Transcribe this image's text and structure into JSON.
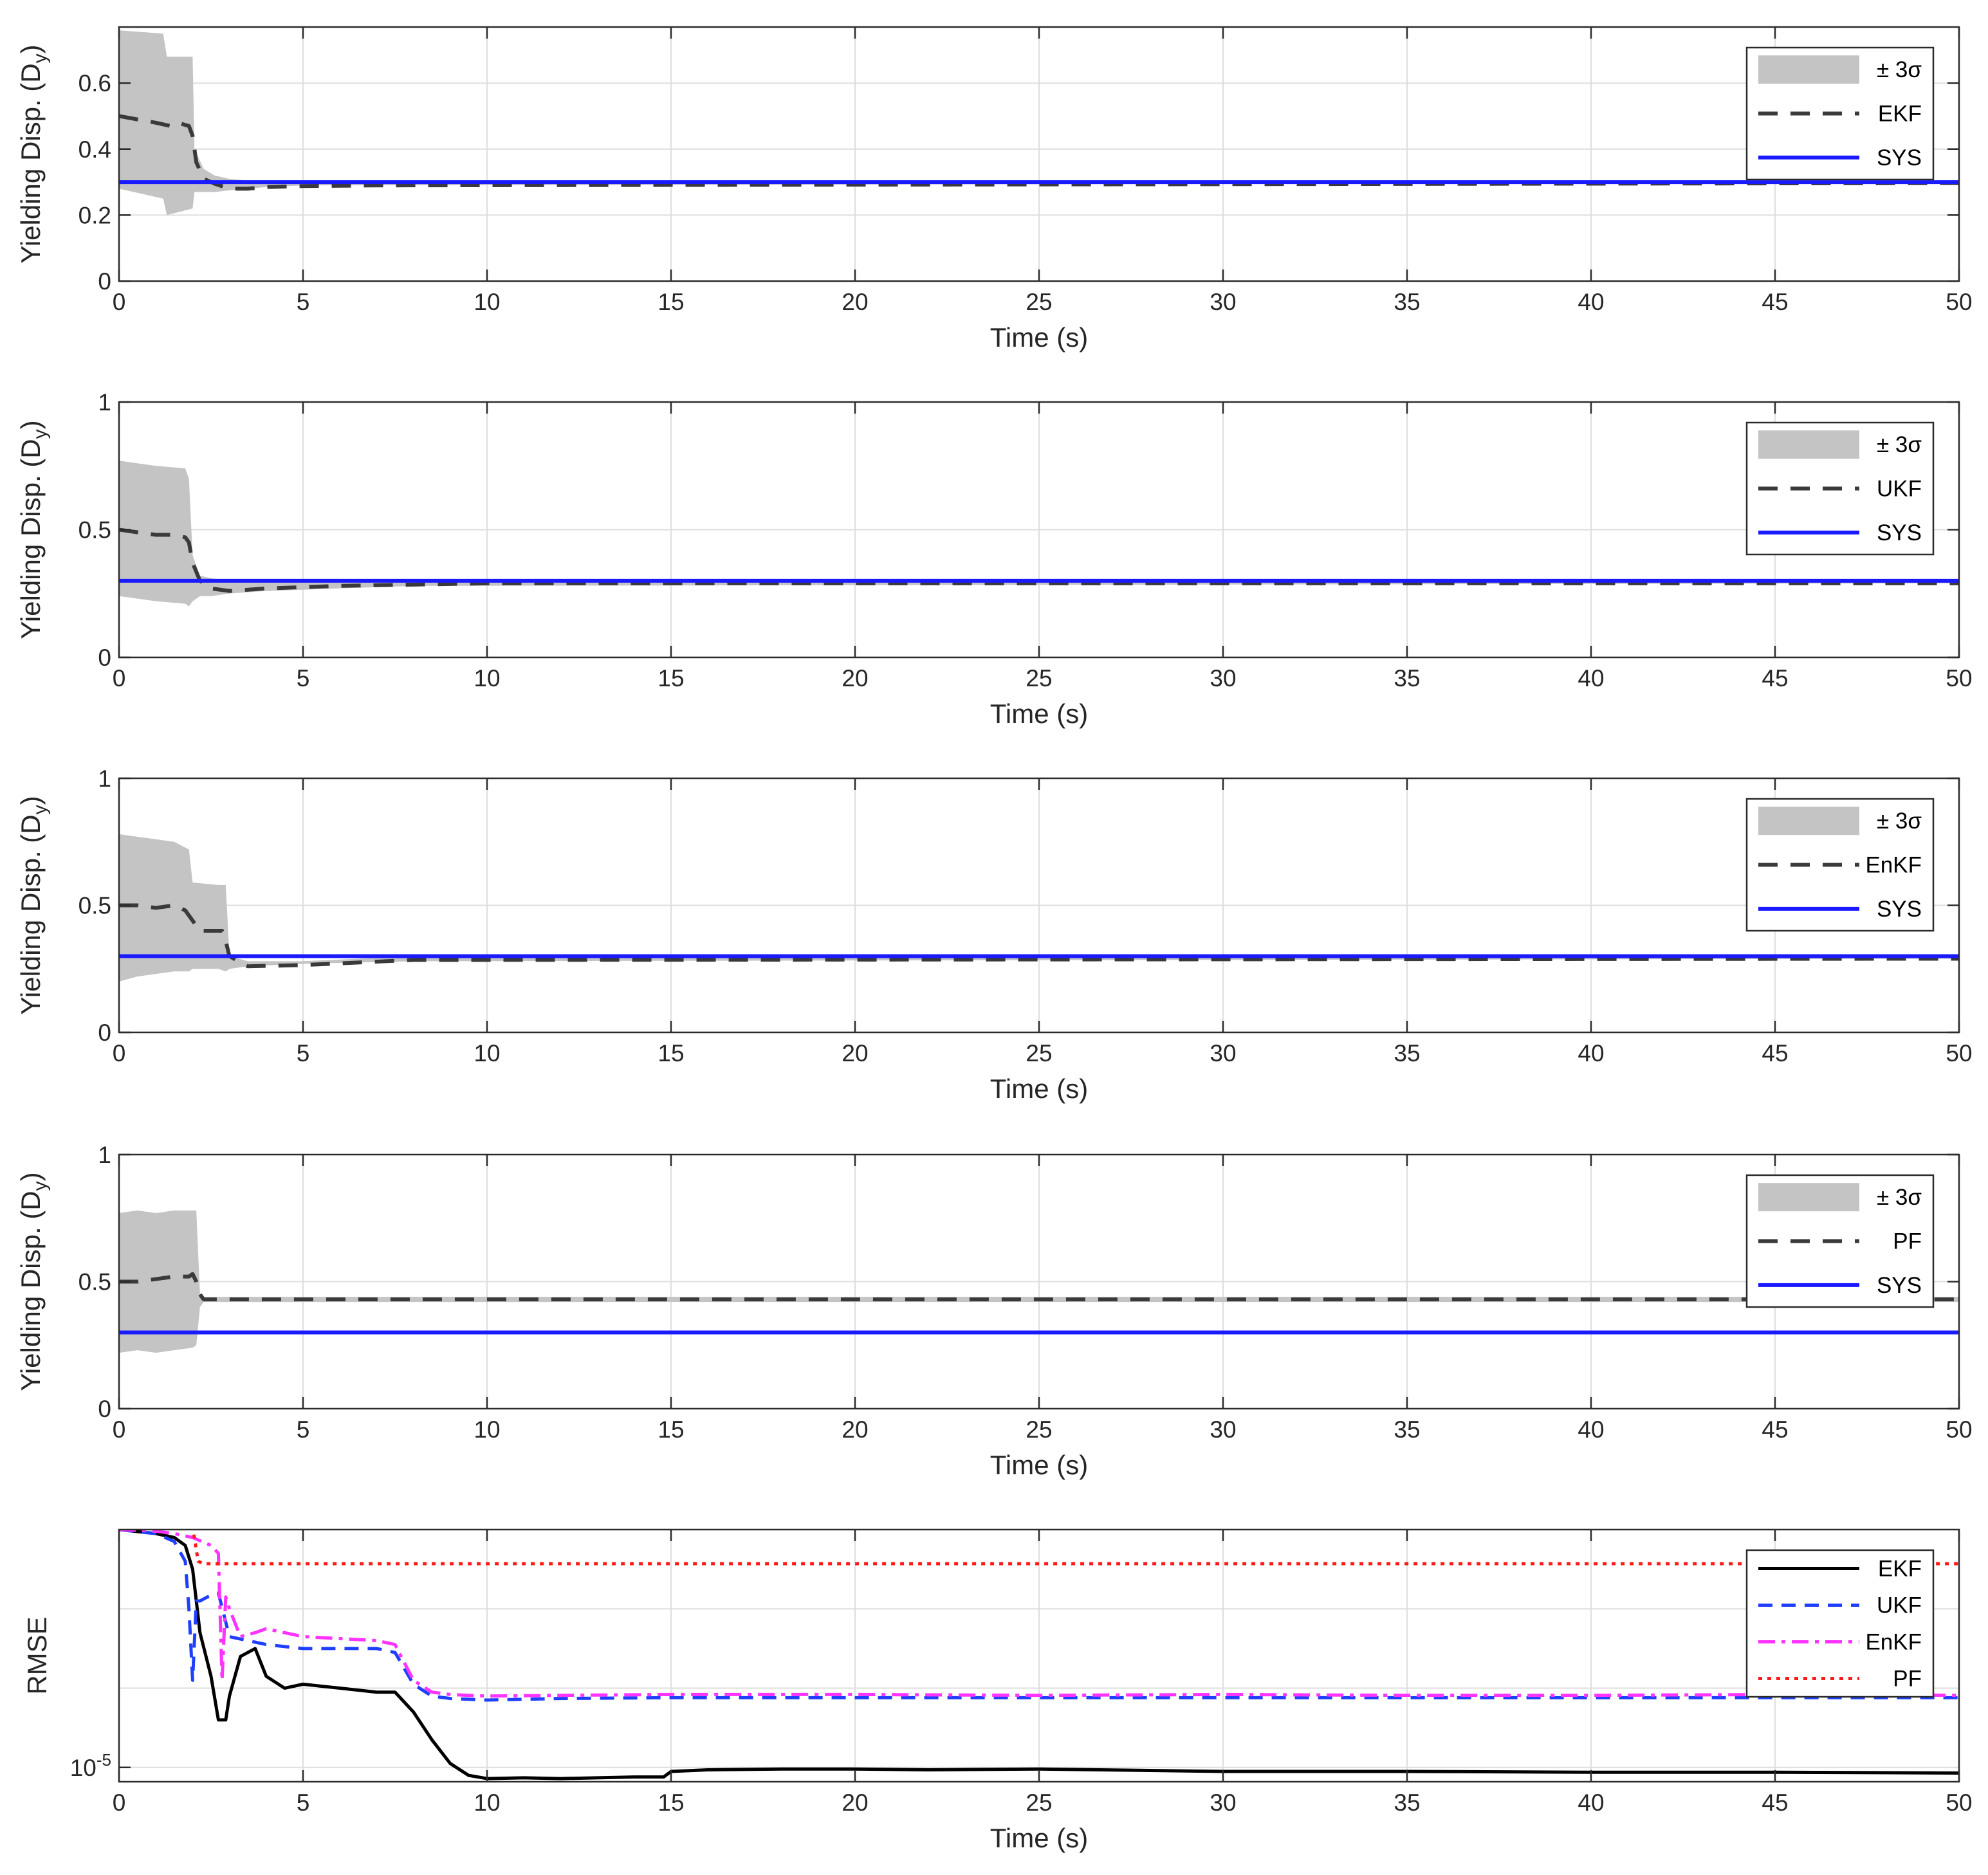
{
  "chart_data": [
    {
      "type": "line",
      "xlabel": "Time (s)",
      "ylabel": "Yielding Disp. (D",
      "ylabel_sub": "y",
      "ylabel_close": ")",
      "xlim": [
        0,
        50
      ],
      "ylim": [
        0,
        0.77
      ],
      "xticks": [
        0,
        5,
        10,
        15,
        20,
        25,
        30,
        35,
        40,
        45,
        50
      ],
      "yticks": [
        0,
        0.2,
        0.4,
        0.6
      ],
      "grid": true,
      "legend_position": "top-right",
      "legend": [
        "± 3σ",
        "EKF",
        "SYS"
      ],
      "band": {
        "name": "± 3σ",
        "x": [
          0,
          1.2,
          1.3,
          2.0,
          2.05,
          2.3,
          2.6,
          3.0,
          3.5,
          4.0,
          5.0,
          50
        ],
        "upper": [
          0.76,
          0.75,
          0.68,
          0.68,
          0.4,
          0.34,
          0.32,
          0.31,
          0.305,
          0.302,
          0.301,
          0.301
        ],
        "lower": [
          0.28,
          0.25,
          0.2,
          0.22,
          0.27,
          0.27,
          0.27,
          0.275,
          0.28,
          0.285,
          0.29,
          0.298
        ]
      },
      "series": [
        {
          "name": "EKF",
          "x": [
            0,
            0.5,
            1.0,
            1.4,
            1.6,
            1.9,
            2.0,
            2.1,
            2.3,
            2.6,
            3.0,
            3.5,
            4.0,
            5.0,
            7.0,
            50
          ],
          "y": [
            0.5,
            0.49,
            0.48,
            0.47,
            0.48,
            0.47,
            0.44,
            0.36,
            0.31,
            0.295,
            0.28,
            0.28,
            0.285,
            0.288,
            0.29,
            0.297
          ]
        },
        {
          "name": "SYS",
          "x": [
            0,
            50
          ],
          "y": [
            0.3,
            0.3
          ]
        }
      ]
    },
    {
      "type": "line",
      "xlabel": "Time (s)",
      "ylabel": "Yielding Disp. (D",
      "ylabel_sub": "y",
      "ylabel_close": ")",
      "xlim": [
        0,
        50
      ],
      "ylim": [
        0,
        1
      ],
      "xticks": [
        0,
        5,
        10,
        15,
        20,
        25,
        30,
        35,
        40,
        45,
        50
      ],
      "yticks": [
        0,
        0.5,
        1
      ],
      "grid": true,
      "legend_position": "top-right",
      "legend": [
        "± 3σ",
        "UKF",
        "SYS"
      ],
      "band": {
        "name": "± 3σ",
        "x": [
          0,
          1.0,
          1.8,
          1.9,
          2.0,
          2.2,
          2.5,
          3.0,
          4.0,
          6.0,
          8.0,
          50
        ],
        "upper": [
          0.77,
          0.75,
          0.74,
          0.7,
          0.4,
          0.32,
          0.31,
          0.3,
          0.3,
          0.3,
          0.3,
          0.3
        ],
        "lower": [
          0.24,
          0.22,
          0.21,
          0.2,
          0.22,
          0.24,
          0.24,
          0.25,
          0.26,
          0.27,
          0.28,
          0.29
        ]
      },
      "series": [
        {
          "name": "UKF",
          "x": [
            0,
            0.5,
            1.0,
            1.5,
            1.8,
            1.9,
            2.0,
            2.2,
            2.5,
            3.0,
            4.0,
            6.0,
            8.0,
            10.0,
            50
          ],
          "y": [
            0.5,
            0.49,
            0.48,
            0.48,
            0.47,
            0.45,
            0.37,
            0.3,
            0.27,
            0.26,
            0.27,
            0.28,
            0.285,
            0.29,
            0.29
          ]
        },
        {
          "name": "SYS",
          "x": [
            0,
            50
          ],
          "y": [
            0.3,
            0.3
          ]
        }
      ]
    },
    {
      "type": "line",
      "xlabel": "Time (s)",
      "ylabel": "Yielding Disp. (D",
      "ylabel_sub": "y",
      "ylabel_close": ")",
      "xlim": [
        0,
        50
      ],
      "ylim": [
        0,
        1
      ],
      "xticks": [
        0,
        5,
        10,
        15,
        20,
        25,
        30,
        35,
        40,
        45,
        50
      ],
      "yticks": [
        0,
        0.5,
        1
      ],
      "grid": true,
      "legend_position": "top-right",
      "legend": [
        "± 3σ",
        "EnKF",
        "SYS"
      ],
      "band": {
        "name": "± 3σ",
        "x": [
          0,
          0.5,
          1.0,
          1.5,
          1.9,
          2.0,
          2.7,
          2.9,
          3.0,
          3.5,
          5.0,
          8.0,
          50
        ],
        "upper": [
          0.78,
          0.77,
          0.76,
          0.75,
          0.72,
          0.59,
          0.58,
          0.58,
          0.3,
          0.28,
          0.28,
          0.3,
          0.3
        ],
        "lower": [
          0.2,
          0.22,
          0.23,
          0.24,
          0.24,
          0.25,
          0.25,
          0.24,
          0.25,
          0.26,
          0.27,
          0.28,
          0.29
        ]
      },
      "series": [
        {
          "name": "EnKF",
          "x": [
            0,
            0.5,
            1.0,
            1.5,
            1.8,
            2.0,
            2.2,
            2.8,
            2.9,
            3.0,
            3.5,
            5.0,
            8.0,
            50
          ],
          "y": [
            0.5,
            0.5,
            0.49,
            0.5,
            0.48,
            0.44,
            0.4,
            0.4,
            0.36,
            0.3,
            0.26,
            0.265,
            0.285,
            0.29
          ]
        },
        {
          "name": "SYS",
          "x": [
            0,
            50
          ],
          "y": [
            0.3,
            0.3
          ]
        }
      ]
    },
    {
      "type": "line",
      "xlabel": "Time (s)",
      "ylabel": "Yielding Disp. (D",
      "ylabel_sub": "y",
      "ylabel_close": ")",
      "xlim": [
        0,
        50
      ],
      "ylim": [
        0,
        1
      ],
      "xticks": [
        0,
        5,
        10,
        15,
        20,
        25,
        30,
        35,
        40,
        45,
        50
      ],
      "yticks": [
        0,
        0.5,
        1
      ],
      "grid": true,
      "legend_position": "top-right",
      "legend": [
        "± 3σ",
        "PF",
        "SYS"
      ],
      "band": {
        "name": "± 3σ",
        "x": [
          0,
          0.5,
          1.0,
          1.5,
          2.0,
          2.1,
          2.2,
          2.3,
          50
        ],
        "upper": [
          0.77,
          0.78,
          0.77,
          0.78,
          0.78,
          0.78,
          0.45,
          0.44,
          0.44
        ],
        "lower": [
          0.22,
          0.23,
          0.22,
          0.23,
          0.24,
          0.25,
          0.4,
          0.42,
          0.42
        ]
      },
      "series": [
        {
          "name": "PF",
          "x": [
            0,
            0.5,
            1.0,
            1.5,
            1.9,
            2.0,
            2.1,
            2.2,
            2.3,
            50
          ],
          "y": [
            0.5,
            0.5,
            0.51,
            0.52,
            0.52,
            0.53,
            0.5,
            0.45,
            0.43,
            0.43
          ]
        },
        {
          "name": "SYS",
          "x": [
            0,
            50
          ],
          "y": [
            0.3,
            0.3
          ]
        }
      ]
    },
    {
      "type": "line",
      "yscale": "log",
      "xlabel": "Time (s)",
      "ylabel": "RMSE",
      "xlim": [
        0,
        50
      ],
      "ylim_log10": [
        -5.18,
        -2.0
      ],
      "xticks": [
        0,
        5,
        10,
        15,
        20,
        25,
        30,
        35,
        40,
        45,
        50
      ],
      "yticks_labeled": [
        {
          "base": "10",
          "exp": "-5",
          "log10": -5
        }
      ],
      "ygrid_log10": [
        -5,
        -4,
        -3,
        -2
      ],
      "grid": true,
      "legend_position": "top-right",
      "legend": [
        "EKF",
        "UKF",
        "EnKF",
        "PF"
      ],
      "series": [
        {
          "name": "EKF",
          "x": [
            0,
            1.0,
            1.5,
            1.8,
            2.0,
            2.2,
            2.5,
            2.7,
            2.9,
            3.0,
            3.3,
            3.7,
            4.0,
            4.5,
            5.0,
            6.0,
            7.0,
            7.5,
            8.0,
            8.5,
            9.0,
            9.5,
            10.0,
            11.0,
            12.0,
            13.0,
            14.0,
            14.8,
            15.0,
            16.0,
            18.0,
            20.0,
            22.0,
            25.0,
            30.0,
            35.0,
            40.0,
            45.0,
            50.0
          ],
          "y_log10": [
            -2.0,
            -2.05,
            -2.1,
            -2.2,
            -2.5,
            -3.3,
            -3.85,
            -4.4,
            -4.4,
            -4.1,
            -3.6,
            -3.5,
            -3.85,
            -4.0,
            -3.95,
            -4.0,
            -4.05,
            -4.05,
            -4.3,
            -4.65,
            -4.95,
            -5.1,
            -5.14,
            -5.13,
            -5.14,
            -5.13,
            -5.12,
            -5.12,
            -5.05,
            -5.03,
            -5.02,
            -5.02,
            -5.03,
            -5.02,
            -5.05,
            -5.05,
            -5.06,
            -5.06,
            -5.07
          ]
        },
        {
          "name": "UKF",
          "x": [
            0,
            1.0,
            1.5,
            1.8,
            1.9,
            2.0,
            2.1,
            2.2,
            2.4,
            2.7,
            3.0,
            3.5,
            4.0,
            5.0,
            7.0,
            7.5,
            8.0,
            8.5,
            9.0,
            10.0,
            12.0,
            15.0,
            20.0,
            25.0,
            30.0,
            35.0,
            40.0,
            45.0,
            50.0
          ],
          "y_log10": [
            -2.0,
            -2.05,
            -2.15,
            -2.4,
            -3.0,
            -3.9,
            -2.9,
            -2.9,
            -2.85,
            -2.8,
            -3.35,
            -3.4,
            -3.45,
            -3.5,
            -3.5,
            -3.55,
            -3.95,
            -4.1,
            -4.13,
            -4.15,
            -4.13,
            -4.12,
            -4.12,
            -4.12,
            -4.12,
            -4.12,
            -4.12,
            -4.12,
            -4.12
          ]
        },
        {
          "name": "EnKF",
          "x": [
            0,
            1.0,
            1.5,
            2.0,
            2.5,
            2.7,
            2.8,
            2.9,
            3.0,
            3.3,
            3.7,
            4.0,
            4.5,
            5.0,
            7.0,
            7.5,
            8.0,
            8.5,
            9.0,
            10.0,
            12.0,
            15.0,
            20.0,
            25.0,
            30.0,
            35.0,
            40.0,
            45.0,
            50.0
          ],
          "y_log10": [
            -2.0,
            -2.02,
            -2.05,
            -2.1,
            -2.2,
            -2.3,
            -3.9,
            -2.85,
            -3.0,
            -3.35,
            -3.3,
            -3.25,
            -3.3,
            -3.35,
            -3.4,
            -3.45,
            -3.9,
            -4.05,
            -4.08,
            -4.1,
            -4.09,
            -4.08,
            -4.08,
            -4.09,
            -4.08,
            -4.09,
            -4.09,
            -4.08,
            -4.09
          ]
        },
        {
          "name": "PF",
          "x": [
            0,
            1.5,
            2.0,
            2.15,
            2.3,
            50
          ],
          "y_log10": [
            -1.98,
            -1.97,
            -1.97,
            -2.4,
            -2.43,
            -2.43
          ]
        }
      ]
    }
  ],
  "colors": {
    "band": "#c4c4c4",
    "estimate_dashed": "#3a3a3a",
    "sys": "#1a1aff",
    "ekf_rmse": "#000000",
    "ukf_rmse": "#1f3fff",
    "enkf_rmse": "#ff33ff",
    "pf_rmse": "#ff1a1a",
    "axes": "#2b2b2b",
    "grid": "#dedede"
  }
}
